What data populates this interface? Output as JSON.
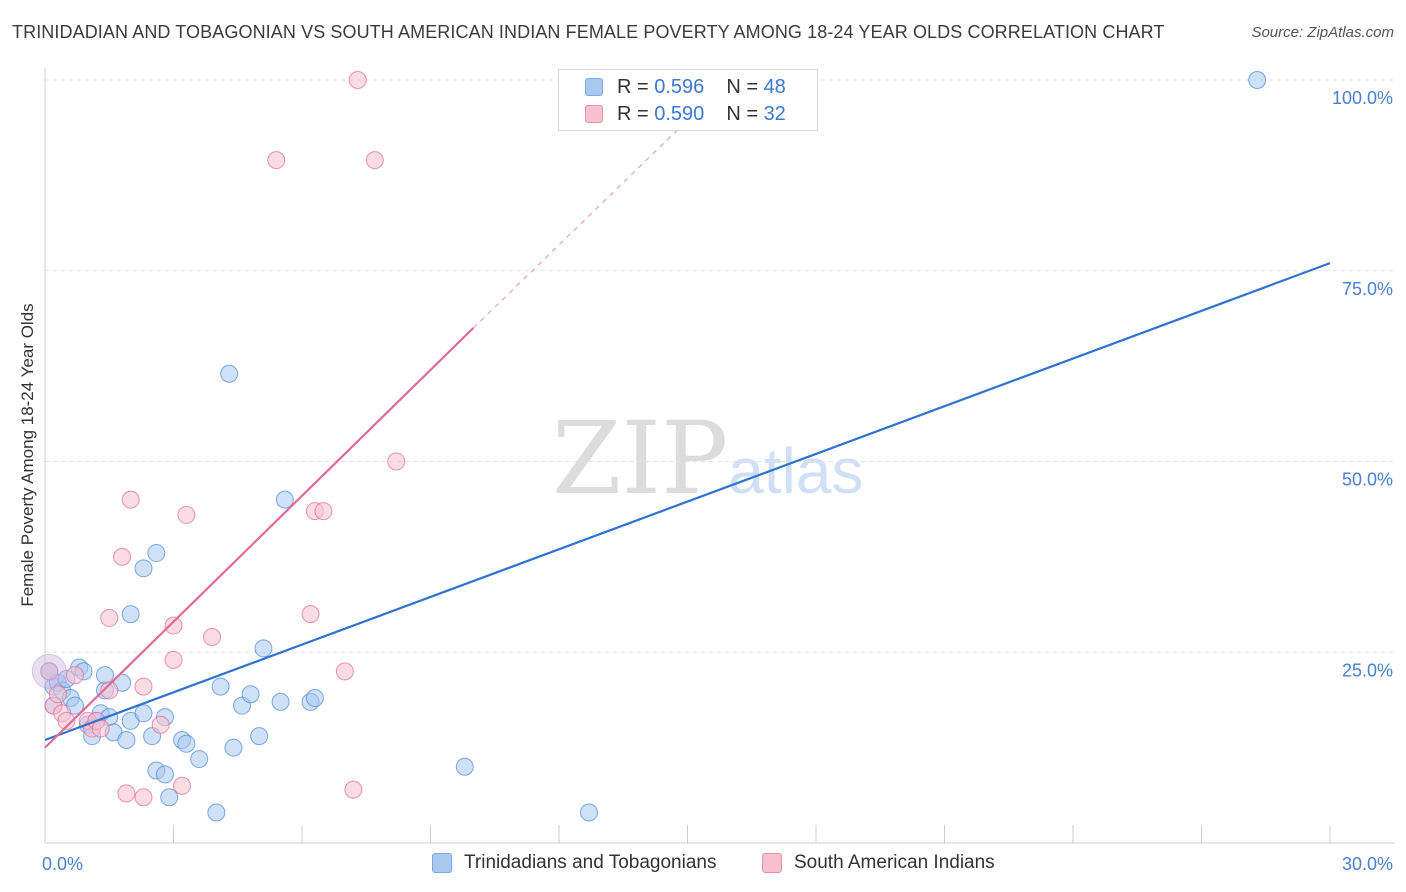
{
  "header": {
    "title": "TRINIDADIAN AND TOBAGONIAN VS SOUTH AMERICAN INDIAN FEMALE POVERTY AMONG 18-24 YEAR OLDS CORRELATION CHART",
    "source": "Source: ZipAtlas.com"
  },
  "watermark": {
    "zip": "ZIP",
    "atlas": "atlas"
  },
  "legend": {
    "rows": [
      {
        "r_label": "R =",
        "r_value": "0.596",
        "n_label": "N =",
        "n_value": "48",
        "color": "#a8c8f0",
        "border": "#7aa8e0"
      },
      {
        "r_label": "R =",
        "r_value": "0.590",
        "n_label": "N =",
        "n_value": "32",
        "color": "#f8c0d0",
        "border": "#e890aa"
      }
    ]
  },
  "bottom_legend": {
    "items": [
      {
        "label": "Trinidadians and Tobagonians",
        "color": "#a8c8f0",
        "border": "#7aa8e0"
      },
      {
        "label": "South American Indians",
        "color": "#f8c0d0",
        "border": "#e890aa"
      }
    ]
  },
  "chart_data": {
    "type": "scatter",
    "title": "TRINIDADIAN AND TOBAGONIAN VS SOUTH AMERICAN INDIAN FEMALE POVERTY AMONG 18-24 YEAR OLDS CORRELATION CHART",
    "xlabel": "",
    "ylabel": "Female Poverty Among 18-24 Year Olds",
    "xlim": [
      0,
      30
    ],
    "ylim": [
      0,
      100
    ],
    "x_ticks": [
      {
        "value": 0,
        "label": "0.0%"
      },
      {
        "value": 30,
        "label": "30.0%"
      }
    ],
    "y_ticks": [
      {
        "value": 25,
        "label": "25.0%"
      },
      {
        "value": 50,
        "label": "50.0%"
      },
      {
        "value": 75,
        "label": "75.0%"
      },
      {
        "value": 100,
        "label": "100.0%"
      }
    ],
    "x_minor_ticks": [
      3,
      6,
      9,
      12,
      15,
      18,
      21,
      24,
      27
    ],
    "series": [
      {
        "name": "Trinidadians and Tobagonians",
        "color": "#4a86d8",
        "fill": "#a8c8f0",
        "points": [
          [
            0.1,
            22.5
          ],
          [
            0.2,
            20.5
          ],
          [
            0.3,
            21.0
          ],
          [
            0.4,
            20.0
          ],
          [
            0.5,
            21.5
          ],
          [
            0.6,
            19.0
          ],
          [
            0.7,
            18.0
          ],
          [
            0.8,
            23.0
          ],
          [
            0.9,
            22.5
          ],
          [
            1.0,
            15.5
          ],
          [
            1.1,
            14.0
          ],
          [
            1.2,
            16.0
          ],
          [
            1.3,
            17.0
          ],
          [
            1.4,
            20.0
          ],
          [
            1.4,
            22.0
          ],
          [
            1.5,
            16.5
          ],
          [
            1.6,
            14.5
          ],
          [
            1.8,
            21.0
          ],
          [
            1.9,
            13.5
          ],
          [
            2.0,
            16.0
          ],
          [
            2.0,
            30.0
          ],
          [
            2.3,
            17.0
          ],
          [
            2.3,
            36.0
          ],
          [
            2.5,
            14.0
          ],
          [
            2.6,
            38.0
          ],
          [
            2.6,
            9.5
          ],
          [
            2.8,
            9.0
          ],
          [
            2.8,
            16.5
          ],
          [
            2.9,
            6.0
          ],
          [
            3.2,
            13.5
          ],
          [
            3.3,
            13.0
          ],
          [
            3.6,
            11.0
          ],
          [
            4.0,
            4.0
          ],
          [
            4.1,
            20.5
          ],
          [
            4.3,
            61.5
          ],
          [
            4.4,
            12.5
          ],
          [
            4.6,
            18.0
          ],
          [
            4.8,
            19.5
          ],
          [
            5.0,
            14.0
          ],
          [
            5.1,
            25.5
          ],
          [
            5.5,
            18.5
          ],
          [
            5.6,
            45.0
          ],
          [
            6.2,
            18.5
          ],
          [
            6.3,
            19.0
          ],
          [
            9.8,
            10.0
          ],
          [
            12.7,
            4.0
          ],
          [
            28.3,
            100.0
          ],
          [
            0.2,
            18.0
          ]
        ],
        "trend": {
          "x0": 0,
          "y0": 13.5,
          "x1": 30,
          "y1": 76.0
        }
      },
      {
        "name": "South American Indians",
        "color": "#e06a95",
        "fill": "#f8c0d0",
        "points": [
          [
            0.1,
            22.5
          ],
          [
            0.2,
            18.0
          ],
          [
            0.3,
            19.5
          ],
          [
            0.4,
            17.0
          ],
          [
            0.5,
            16.0
          ],
          [
            0.7,
            22.0
          ],
          [
            1.0,
            16.0
          ],
          [
            1.1,
            15.0
          ],
          [
            1.2,
            16.0
          ],
          [
            1.3,
            15.0
          ],
          [
            1.5,
            20.0
          ],
          [
            1.5,
            29.5
          ],
          [
            1.8,
            37.5
          ],
          [
            1.9,
            6.5
          ],
          [
            2.0,
            45.0
          ],
          [
            2.3,
            6.0
          ],
          [
            2.3,
            20.5
          ],
          [
            2.7,
            15.5
          ],
          [
            3.0,
            28.5
          ],
          [
            3.0,
            24.0
          ],
          [
            3.2,
            7.5
          ],
          [
            3.3,
            43.0
          ],
          [
            3.9,
            27.0
          ],
          [
            5.4,
            89.5
          ],
          [
            6.2,
            30.0
          ],
          [
            6.3,
            43.5
          ],
          [
            6.5,
            43.5
          ],
          [
            7.0,
            22.5
          ],
          [
            7.2,
            7.0
          ],
          [
            7.3,
            100.0
          ],
          [
            7.7,
            89.5
          ],
          [
            8.2,
            50.0
          ]
        ],
        "trend": {
          "x0": 0,
          "y0": 12.5,
          "x1": 10.0,
          "y1": 67.5
        },
        "trend_dashed": {
          "x0": 10.0,
          "y0": 67.5,
          "x1": 15.6,
          "y1": 98.0
        }
      }
    ]
  }
}
